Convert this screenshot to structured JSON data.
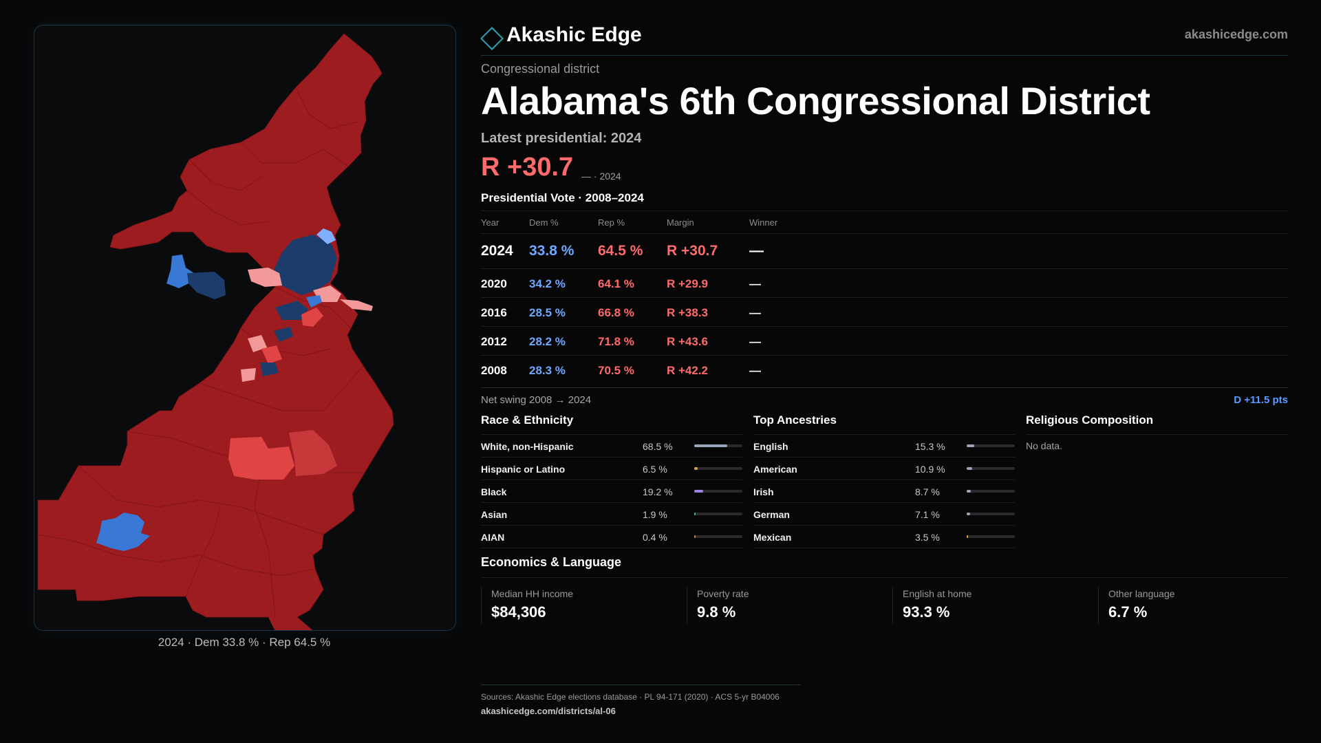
{
  "brand": {
    "name": "Akashic Edge",
    "site": "akashicedge.com",
    "icon": "diamond-icon",
    "accent": "#2aa3b9"
  },
  "header": {
    "eyebrow": "Congressional district",
    "title": "Alabama's 6th Congressional District",
    "latest": "Latest presidential: 2024",
    "margin": "R +30.7",
    "margin_sub": "— · 2024"
  },
  "presidential": {
    "title": "Presidential Vote · 2008–2024",
    "columns": [
      "Year",
      "Dem %",
      "Rep %",
      "Margin",
      "Winner"
    ],
    "rows": [
      {
        "year": "2024",
        "dem": "33.8 %",
        "rep": "64.5 %",
        "margin": "R +30.7",
        "winner": "—"
      },
      {
        "year": "2020",
        "dem": "34.2 %",
        "rep": "64.1 %",
        "margin": "R +29.9",
        "winner": "—"
      },
      {
        "year": "2016",
        "dem": "28.5 %",
        "rep": "66.8 %",
        "margin": "R +38.3",
        "winner": "—"
      },
      {
        "year": "2012",
        "dem": "28.2 %",
        "rep": "71.8 %",
        "margin": "R +43.6",
        "winner": "—"
      },
      {
        "year": "2008",
        "dem": "28.3 %",
        "rep": "70.5 %",
        "margin": "R +42.2",
        "winner": "—"
      }
    ],
    "swing_label": "Net swing 2008 → 2024",
    "swing_value": "D +11.5 pts"
  },
  "race": {
    "title": "Race & Ethnicity",
    "items": [
      {
        "name": "White, non-Hispanic",
        "pct": "68.5 %",
        "value": 68.5,
        "color": "#9aa3b8"
      },
      {
        "name": "Hispanic or Latino",
        "pct": "6.5 %",
        "value": 6.5,
        "color": "#e0a040"
      },
      {
        "name": "Black",
        "pct": "19.2 %",
        "value": 19.2,
        "color": "#9c82e8"
      },
      {
        "name": "Asian",
        "pct": "1.9 %",
        "value": 1.9,
        "color": "#3cc088"
      },
      {
        "name": "AIAN",
        "pct": "0.4 %",
        "value": 0.4,
        "color": "#e07a3a"
      }
    ]
  },
  "ancestry": {
    "title": "Top Ancestries",
    "items": [
      {
        "name": "English",
        "pct": "15.3 %",
        "value": 15.3,
        "color": "#9aa3b8"
      },
      {
        "name": "American",
        "pct": "10.9 %",
        "value": 10.9,
        "color": "#9aa3b8"
      },
      {
        "name": "Irish",
        "pct": "8.7 %",
        "value": 8.7,
        "color": "#9aa3b8"
      },
      {
        "name": "German",
        "pct": "7.1 %",
        "value": 7.1,
        "color": "#9aa3b8"
      },
      {
        "name": "Mexican",
        "pct": "3.5 %",
        "value": 3.5,
        "color": "#e0a040"
      }
    ]
  },
  "religion": {
    "title": "Religious Composition",
    "nodata": "No data."
  },
  "economics": {
    "title": "Economics & Language",
    "cards": [
      {
        "label": "Median HH income",
        "value": "$84,306"
      },
      {
        "label": "Poverty rate",
        "value": "9.8 %"
      },
      {
        "label": "English at home",
        "value": "93.3 %"
      },
      {
        "label": "Other language",
        "value": "6.7 %"
      }
    ]
  },
  "map": {
    "caption": "2024 · Dem 33.8 % · Rep 64.5 %",
    "colors": {
      "strong_rep": "#9d1c1f",
      "lean_rep": "#e04444",
      "light_rep": "#f29a9a",
      "strong_dem": "#1c3d6b",
      "dem": "#3a78d6",
      "light_dem": "#7fb0ff"
    }
  },
  "footer": {
    "sources": "Sources: Akashic Edge elections database · PL 94-171 (2020) · ACS 5-yr B04006",
    "url": "akashicedge.com/districts/al-06"
  }
}
